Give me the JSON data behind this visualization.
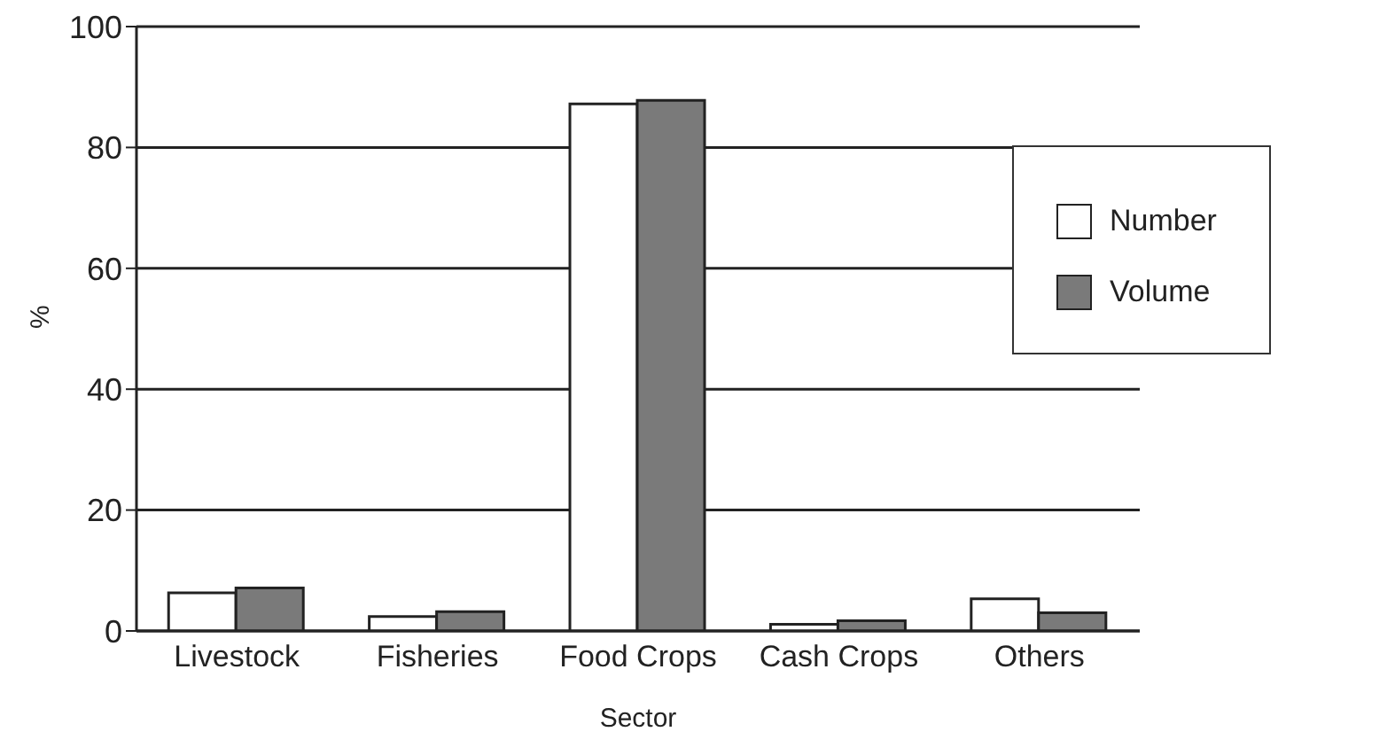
{
  "chart_data": {
    "type": "bar",
    "xlabel": "Sector",
    "ylabel": "%",
    "categories": [
      "Livestock",
      "Fisheries",
      "Food Crops",
      "Cash Crops",
      "Others"
    ],
    "series": [
      {
        "name": "Number",
        "color": "#ffffff",
        "values": [
          6.3,
          2.4,
          87.2,
          1.1,
          5.3
        ]
      },
      {
        "name": "Volume",
        "color": "#7a7a7a",
        "values": [
          7.1,
          3.2,
          87.8,
          1.7,
          3.0
        ]
      }
    ],
    "ylim": [
      0,
      100
    ],
    "yticks": [
      0,
      20,
      40,
      60,
      80,
      100
    ],
    "grid": "y",
    "legend": "top right"
  }
}
